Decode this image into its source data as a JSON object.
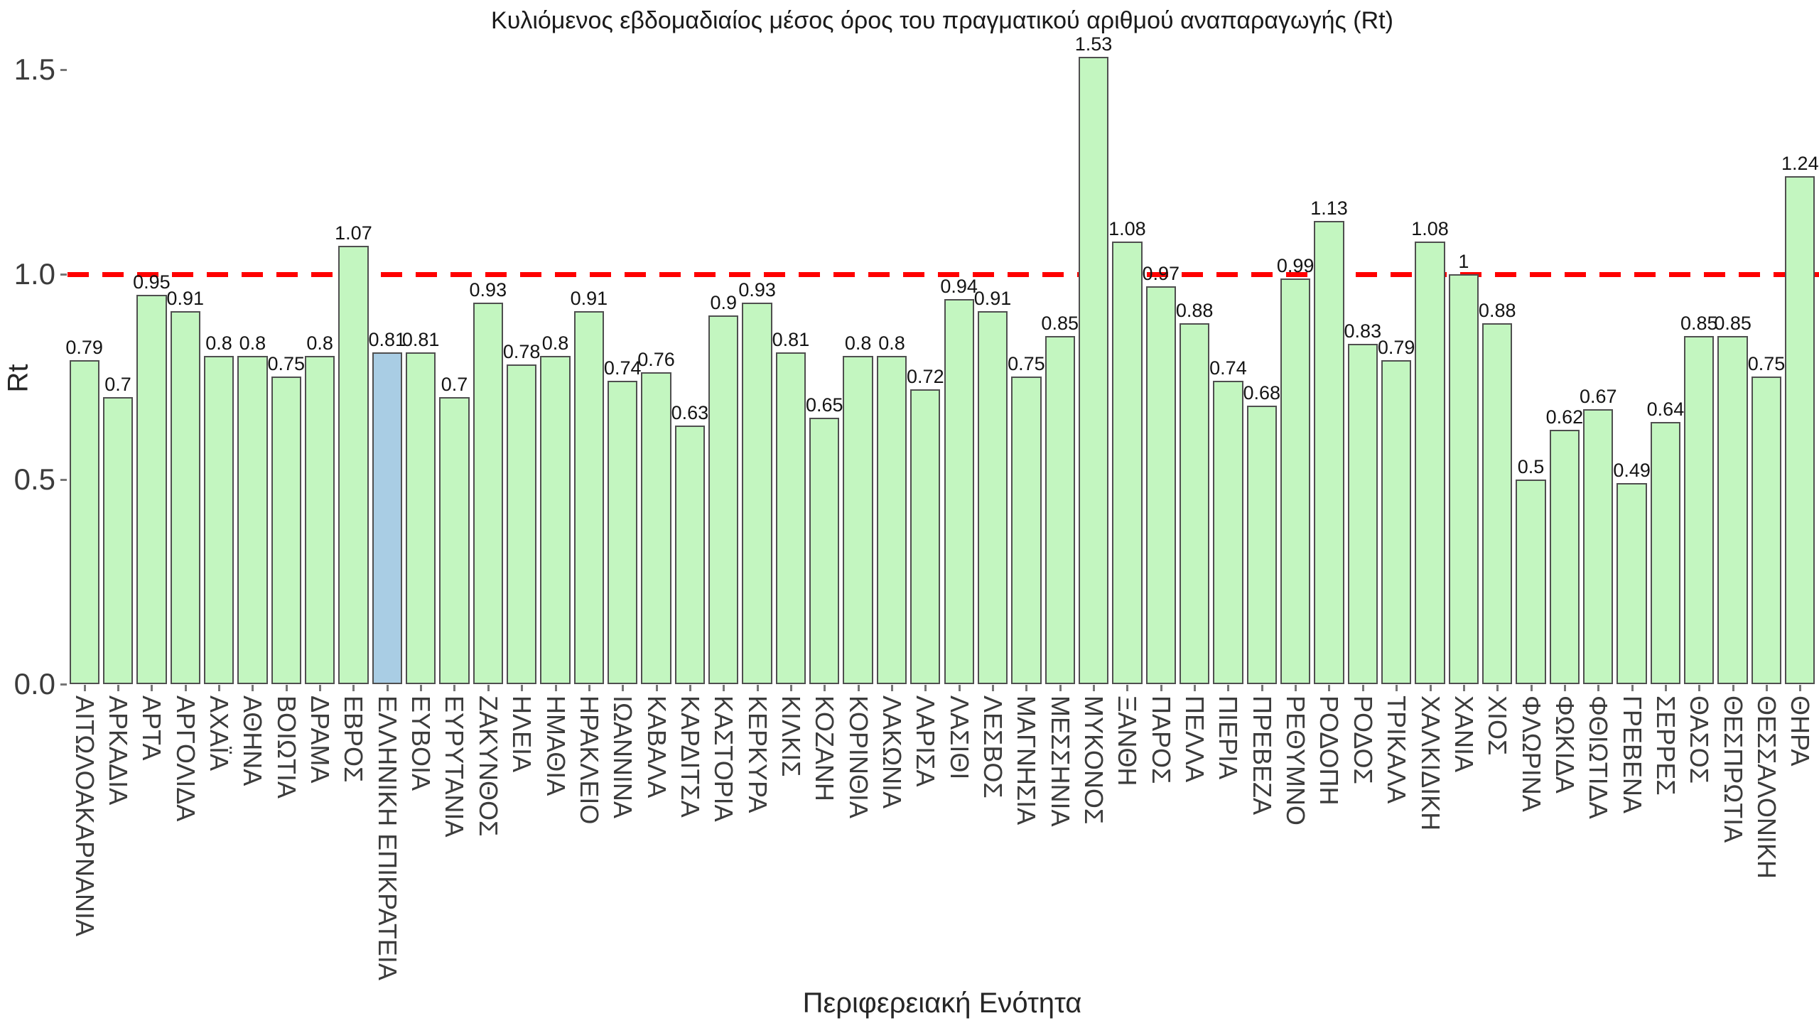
{
  "chart_data": {
    "type": "bar",
    "title": "Κυλιόμενος εβδομαδιαίος μέσος όρος του πραγματικού αριθμού αναπαραγωγής (Rt)",
    "xlabel": "Περιφερειακή Ενότητα",
    "ylabel": "Rt",
    "ylim": [
      0,
      1.6
    ],
    "yticks": [
      0.0,
      0.5,
      1.0,
      1.5
    ],
    "ytick_labels": [
      "0.0",
      "0.5",
      "1.0",
      "1.5"
    ],
    "grid": "off",
    "legend": "none",
    "reference_line": {
      "value": 1.0,
      "color": "#ff0000",
      "style": "dashed"
    },
    "bar_color": "#c3f6c0",
    "bar_border_color": "#4f4f4f",
    "highlight_category": "ΕΛΛΗΝΙΚΗ ΕΠΙΚΡΑΤΕΙΑ",
    "highlight_color": "#a9cde4",
    "categories": [
      "ΑΙΤΩΛΟΑΚΑΡΝΑΝΙΑ",
      "ΑΡΚΑΔΙΑ",
      "ΑΡΤΑ",
      "ΑΡΓΟΛΙΔΑ",
      "ΑΧΑΪΑ",
      "ΑΘΗΝΑ",
      "ΒΟΙΩΤΙΑ",
      "ΔΡΑΜΑ",
      "ΕΒΡΟΣ",
      "ΕΛΛΗΝΙΚΗ ΕΠΙΚΡΑΤΕΙΑ",
      "ΕΥΒΟΙΑ",
      "ΕΥΡΥΤΑΝΙΑ",
      "ΖΑΚΥΝΘΟΣ",
      "ΗΛΕΙΑ",
      "ΗΜΑΘΙΑ",
      "ΗΡΑΚΛΕΙΟ",
      "ΙΩΑΝΝΙΝΑ",
      "ΚΑΒΑΛΑ",
      "ΚΑΡΔΙΤΣΑ",
      "ΚΑΣΤΟΡΙΑ",
      "ΚΕΡΚΥΡΑ",
      "ΚΙΛΚΙΣ",
      "ΚΟΖΑΝΗ",
      "ΚΟΡΙΝΘΙΑ",
      "ΛΑΚΩΝΙΑ",
      "ΛΑΡΙΣΑ",
      "ΛΑΣΙΘΙ",
      "ΛΕΣΒΟΣ",
      "ΜΑΓΝΗΣΙΑ",
      "ΜΕΣΣΗΝΙΑ",
      "ΜΥΚΟΝΟΣ",
      "ΞΑΝΘΗ",
      "ΠΑΡΟΣ",
      "ΠΕΛΛΑ",
      "ΠΙΕΡΙΑ",
      "ΠΡΕΒΕΖΑ",
      "ΡΕΘΥΜΝΟ",
      "ΡΟΔΟΠΗ",
      "ΡΟΔΟΣ",
      "ΤΡΙΚΑΛΑ",
      "ΧΑΛΚΙΔΙΚΗ",
      "ΧΑΝΙΑ",
      "ΧΙΟΣ",
      "ΦΛΩΡΙΝΑ",
      "ΦΩΚΙΔΑ",
      "ΦΘΙΩΤΙΔΑ",
      "ΓΡΕΒΕΝΑ",
      "ΣΕΡΡΕΣ",
      "ΘΑΣΟΣ",
      "ΘΕΣΠΡΩΤΙΑ",
      "ΘΕΣΣΑΛΟΝΙΚΗ",
      "ΘΗΡΑ"
    ],
    "values": [
      0.79,
      0.7,
      0.95,
      0.91,
      0.8,
      0.8,
      0.75,
      0.8,
      1.07,
      0.81,
      0.81,
      0.7,
      0.93,
      0.78,
      0.8,
      0.91,
      0.74,
      0.76,
      0.63,
      0.9,
      0.93,
      0.81,
      0.65,
      0.8,
      0.8,
      0.72,
      0.94,
      0.91,
      0.75,
      0.85,
      1.53,
      1.08,
      0.97,
      0.88,
      0.74,
      0.68,
      0.99,
      1.13,
      0.83,
      0.79,
      1.08,
      1,
      0.88,
      0.5,
      0.62,
      0.67,
      0.49,
      0.64,
      0.85,
      0.85,
      0.75,
      1.24
    ],
    "value_labels": [
      "0.79",
      "0.7",
      "0.95",
      "0.91",
      "0.8",
      "0.8",
      "0.75",
      "0.8",
      "1.07",
      "0.81",
      "0.81",
      "0.7",
      "0.93",
      "0.78",
      "0.8",
      "0.91",
      "0.74",
      "0.76",
      "0.63",
      "0.9",
      "0.93",
      "0.81",
      "0.65",
      "0.8",
      "0.8",
      "0.72",
      "0.94",
      "0.91",
      "0.75",
      "0.85",
      "1.53",
      "1.08",
      "0.97",
      "0.88",
      "0.74",
      "0.68",
      "0.99",
      "1.13",
      "0.83",
      "0.79",
      "1.08",
      "1",
      "0.88",
      "0.5",
      "0.62",
      "0.67",
      "0.49",
      "0.64",
      "0.85",
      "0.85",
      "0.75",
      "1.24"
    ]
  }
}
